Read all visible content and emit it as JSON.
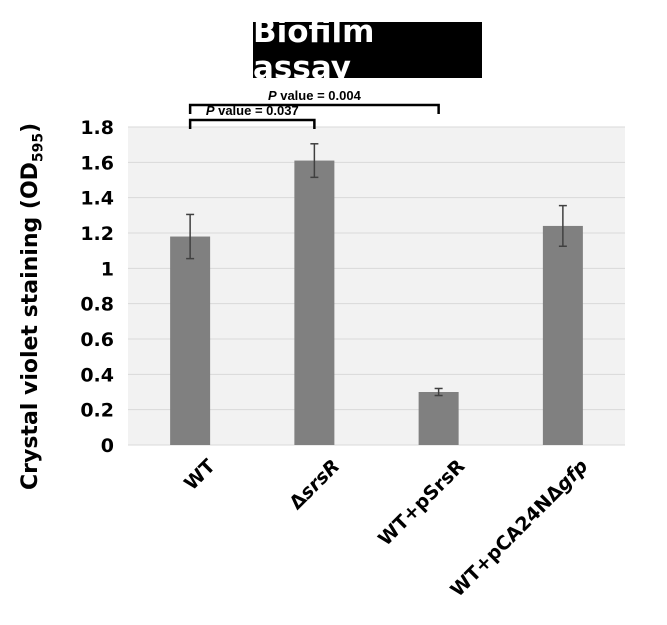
{
  "chart_data": {
    "type": "bar",
    "title": "Biofilm assay",
    "ylabel_main": "Crystal violet staining (OD",
    "ylabel_sub": "595",
    "ylabel_end": ")",
    "categories": [
      {
        "prefix": "WT",
        "italic": ""
      },
      {
        "prefix": "Δ",
        "italic": "srsR"
      },
      {
        "prefix": "WT+pSrsR",
        "italic": ""
      },
      {
        "prefix": "WT+pCA24NΔ",
        "italic": "gfp"
      }
    ],
    "values": [
      1.18,
      1.61,
      0.3,
      1.24
    ],
    "errors": [
      0.125,
      0.095,
      0.02,
      0.115
    ],
    "ylim": [
      0,
      1.8
    ],
    "yticks": [
      "0",
      "0.2",
      "0.4",
      "0.6",
      "0.8",
      "1",
      "1.2",
      "1.4",
      "1.6",
      "1.8"
    ],
    "grid": true,
    "colors": {
      "bar": "#808080",
      "grid": "#d9d9d9",
      "plot_bg": "#f2f2f2"
    },
    "annotations": [
      {
        "from": 0,
        "to": 1,
        "p_label": "P",
        "value_text": " value = 0.037"
      },
      {
        "from": 0,
        "to": 2,
        "p_label": "P",
        "value_text": " value = 0.004"
      }
    ]
  }
}
